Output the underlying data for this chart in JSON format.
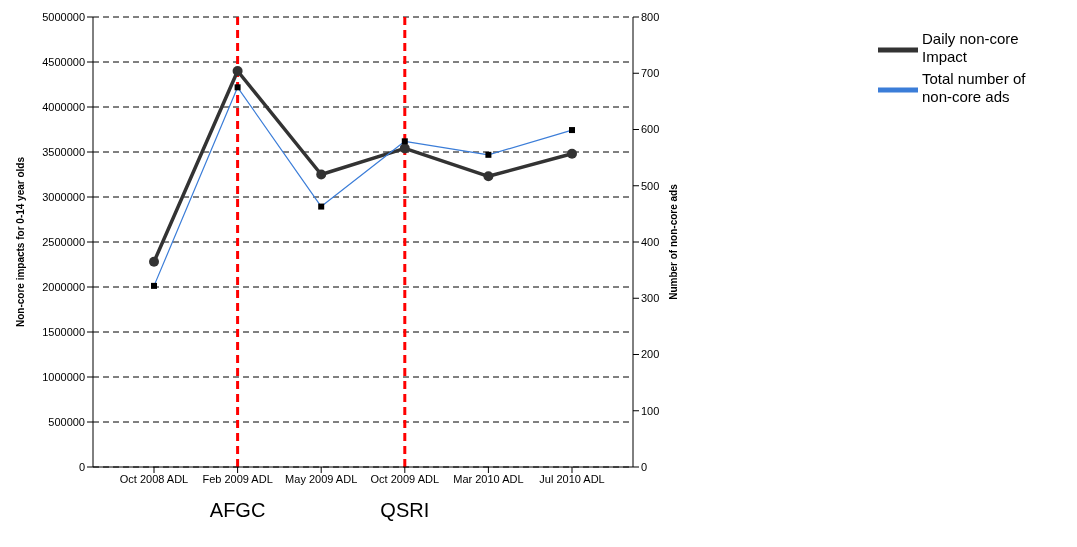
{
  "chart_data": {
    "type": "line",
    "categories": [
      "Oct 2008 ADL",
      "Feb 2009 ADL",
      "May 2009 ADL",
      "Oct 2009 ADL",
      "Mar 2010 ADL",
      "Jul 2010 ADL"
    ],
    "series": [
      {
        "name": "Daily non-core Impact",
        "color": "#333333",
        "marker": "circle",
        "values": [
          2280000,
          4400000,
          3250000,
          3540000,
          3230000,
          3480000
        ]
      },
      {
        "name": "Total number of non-core ads",
        "color": "#3b7dd8",
        "marker": "square",
        "axis": "y2",
        "values": [
          322,
          675,
          463,
          579,
          555,
          599
        ]
      }
    ],
    "ylabel": "Non-core impacts for 0-14 year olds",
    "y2label": "Number of non-core ads",
    "ylim": [
      0,
      5000000
    ],
    "yticks": [
      0,
      500000,
      1000000,
      1500000,
      2000000,
      2500000,
      3000000,
      3500000,
      4000000,
      4500000,
      5000000
    ],
    "y2lim": [
      0,
      800
    ],
    "y2ticks": [
      0,
      100,
      200,
      300,
      400,
      500,
      600,
      700,
      800
    ],
    "ref_lines": [
      {
        "axis": "x",
        "value": "Feb 2009 ADL",
        "label": "AFGC",
        "color": "#ff0000",
        "line_style": "dashed"
      },
      {
        "axis": "x",
        "value": "Oct 2009 ADL",
        "label": "QSRI",
        "color": "#ff0000",
        "line_style": "dashed"
      }
    ],
    "grid": "y",
    "legend": "top right"
  }
}
